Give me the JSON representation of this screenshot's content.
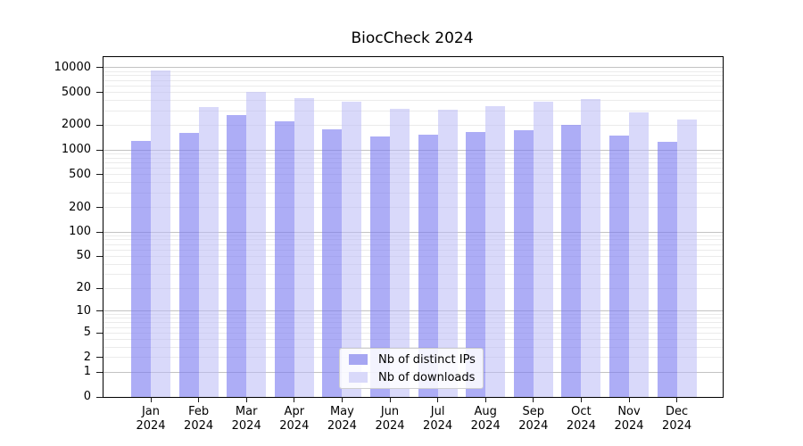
{
  "chart_data": {
    "type": "bar",
    "title": "BiocCheck 2024",
    "categories": [
      "Jan",
      "Feb",
      "Mar",
      "Apr",
      "May",
      "Jun",
      "Jul",
      "Aug",
      "Sep",
      "Oct",
      "Nov",
      "Dec"
    ],
    "category_year": "2024",
    "series": [
      {
        "name": "Nb of distinct IPs",
        "color": "#a6a6f2",
        "fill": "rgba(122,122,240,0.62)",
        "values": [
          1300,
          1600,
          2650,
          2250,
          1800,
          1450,
          1550,
          1650,
          1750,
          2000,
          1500,
          1250
        ]
      },
      {
        "name": "Nb of downloads",
        "color": "#d9d9fa",
        "fill": "rgba(185,185,246,0.55)",
        "values": [
          9200,
          3300,
          5100,
          4300,
          3900,
          3150,
          3100,
          3400,
          3900,
          4200,
          2900,
          2350
        ]
      }
    ],
    "y_axis": {
      "scale": "log1p",
      "ticks": [
        0,
        1,
        2,
        5,
        10,
        20,
        50,
        100,
        200,
        500,
        1000,
        2000,
        5000,
        10000
      ],
      "major_gridlines": [
        1,
        10,
        100,
        1000,
        10000
      ],
      "ylim_top": 13500
    },
    "grid": {
      "on": true,
      "major_color": "#c3c3c3",
      "minor_color": "#ebebeb"
    },
    "legend": {
      "position": "lower-center"
    }
  }
}
